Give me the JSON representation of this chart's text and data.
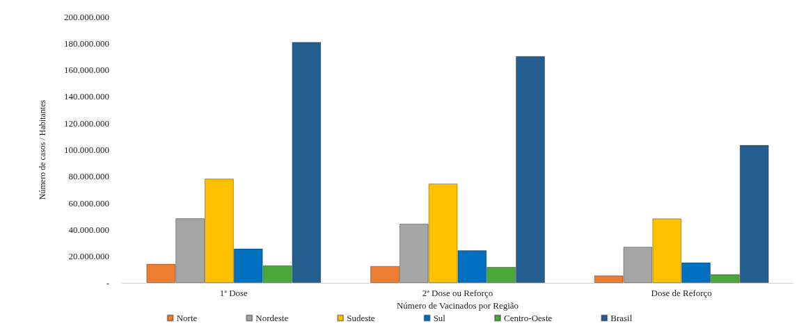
{
  "chart_data": {
    "type": "bar",
    "xlabel": "Número de Vacinados por Região",
    "ylabel": "Número de casos / Habitantes",
    "categories": [
      "1ª Dose",
      "2ª Dose ou Reforço",
      "Dose de Reforço"
    ],
    "series": [
      {
        "name": "Norte",
        "color": "#ed7d31",
        "values": [
          14300000,
          12700000,
          5600000
        ]
      },
      {
        "name": "Nordeste",
        "color": "#a5a5a5",
        "values": [
          48500000,
          44500000,
          27200000
        ]
      },
      {
        "name": "Sudeste",
        "color": "#ffc000",
        "values": [
          78300000,
          74600000,
          48400000
        ]
      },
      {
        "name": "Sul",
        "color": "#0070c0",
        "values": [
          25800000,
          24500000,
          15400000
        ]
      },
      {
        "name": "Centro-Oeste",
        "color": "#4aa83a",
        "values": [
          13200000,
          12000000,
          6500000
        ]
      },
      {
        "name": "Brasil",
        "color": "#255e91",
        "values": [
          181000000,
          170400000,
          103600000
        ]
      }
    ],
    "ylim": [
      0,
      200000000
    ],
    "yticks": [
      {
        "value": 0,
        "label": "-"
      },
      {
        "value": 20000000,
        "label": "20.000.000"
      },
      {
        "value": 40000000,
        "label": "40.000.000"
      },
      {
        "value": 60000000,
        "label": "60.000.000"
      },
      {
        "value": 80000000,
        "label": "80.000.000"
      },
      {
        "value": 100000000,
        "label": "100.000.000"
      },
      {
        "value": 120000000,
        "label": "120.000.000"
      },
      {
        "value": 140000000,
        "label": "140.000.000"
      },
      {
        "value": 160000000,
        "label": "160.000.000"
      },
      {
        "value": 180000000,
        "label": "180.000.000"
      },
      {
        "value": 200000000,
        "label": "200.000.000"
      }
    ],
    "grid": false,
    "legend": "bottom"
  }
}
